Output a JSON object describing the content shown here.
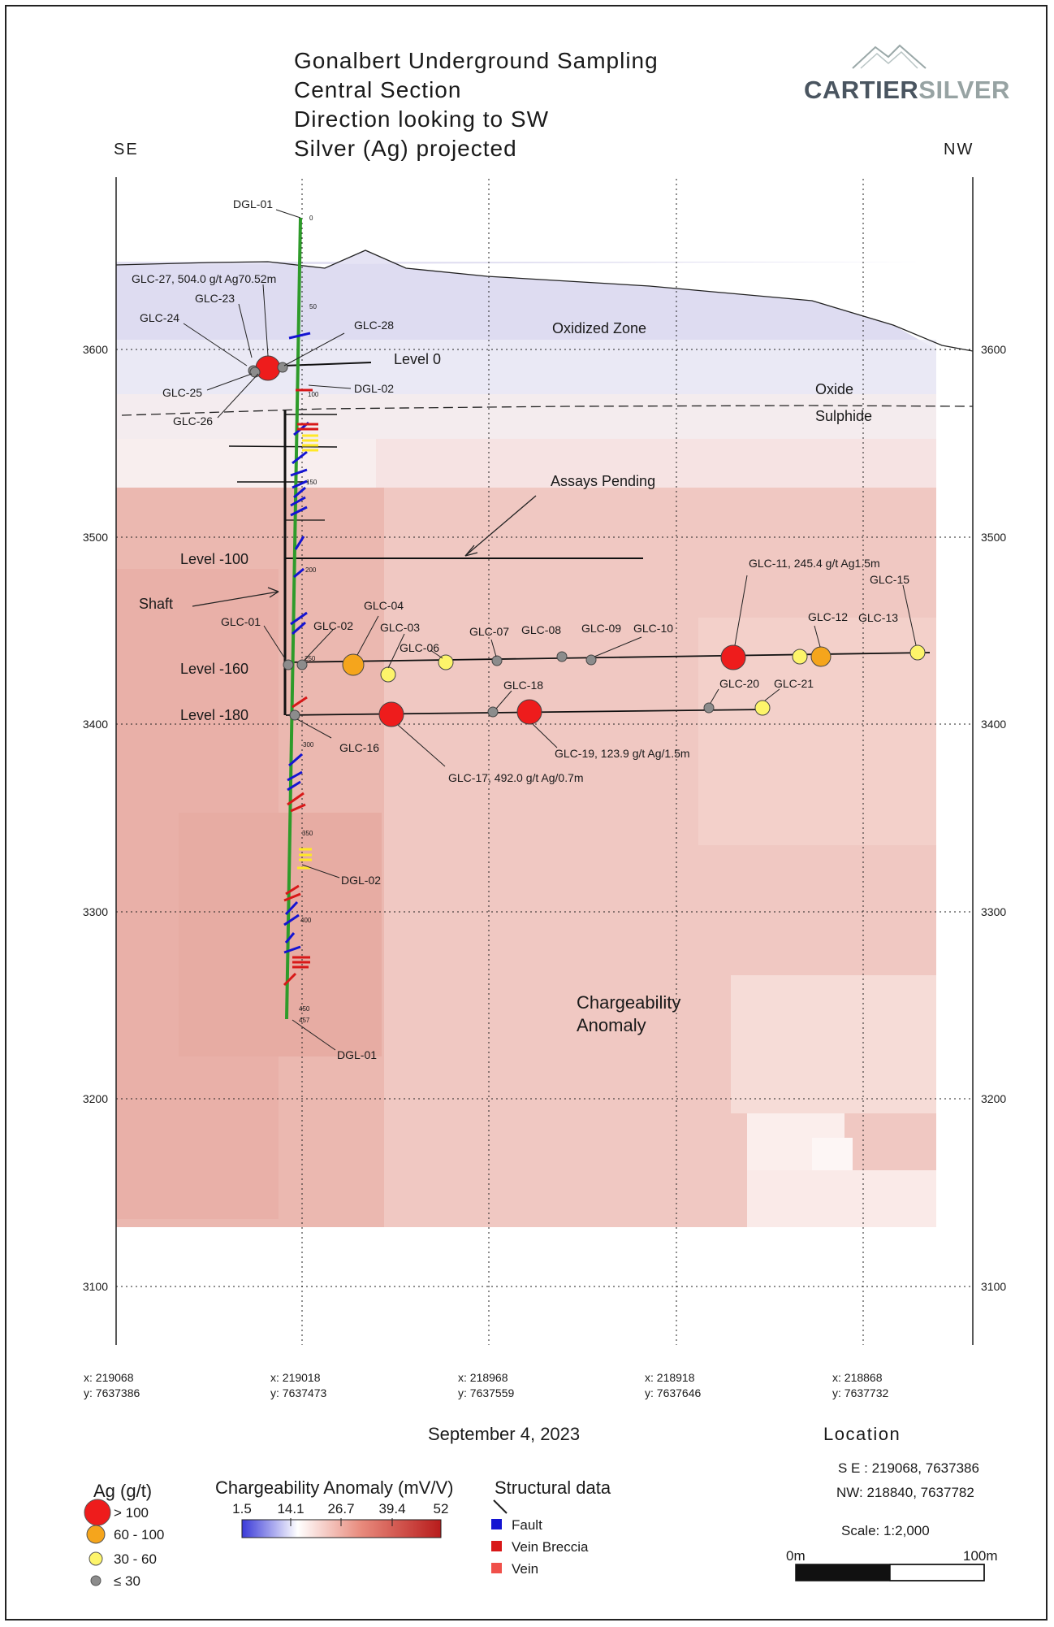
{
  "title_lines": [
    "Gonalbert Underground Sampling",
    "Central Section",
    "Direction looking to SW",
    "Silver (Ag) projected"
  ],
  "logo": {
    "text_dark": "CARTIER",
    "text_light": "SILVER"
  },
  "direction": {
    "left": "SE",
    "right": "NW"
  },
  "elevation_ticks": [
    "3600",
    "3500",
    "3400",
    "3300",
    "3200",
    "3100"
  ],
  "x_ticks": [
    {
      "x": "x: 219068",
      "y": "y: 7637386"
    },
    {
      "x": "x: 219018",
      "y": "y: 7637473"
    },
    {
      "x": "x: 218968",
      "y": "y: 7637559"
    },
    {
      "x": "x: 218918",
      "y": "y: 7637646"
    },
    {
      "x": "x: 218868",
      "y": "y: 7637732"
    }
  ],
  "depth_ticks": [
    "0",
    "50",
    "100",
    "150",
    "200",
    "250",
    "300",
    "350",
    "400",
    "450",
    "457"
  ],
  "zones": {
    "oxidized": "Oxidized Zone",
    "oxide": "Oxide",
    "sulphide": "Sulphide",
    "assays": "Assays Pending",
    "chargeability": [
      "Chargeability",
      "Anomaly"
    ]
  },
  "levels": {
    "level0": "Level 0",
    "level100": "Level -100",
    "level160": "Level -160",
    "level180": "Level -180",
    "shaft": "Shaft"
  },
  "holes": {
    "dgl01_top": "DGL-01",
    "dgl02_top": "DGL-02",
    "dgl02_bottom": "DGL-02",
    "dgl01_bottom": "DGL-01"
  },
  "samples": [
    {
      "id": "GLC-27",
      "label": "GLC-27, 504.0 g/t Ag70.52m",
      "grade": ">100"
    },
    {
      "id": "GLC-23",
      "label": "GLC-23",
      "grade": "<=30"
    },
    {
      "id": "GLC-24",
      "label": "GLC-24",
      "grade": "<=30"
    },
    {
      "id": "GLC-25",
      "label": "GLC-25",
      "grade": "<=30"
    },
    {
      "id": "GLC-26",
      "label": "GLC-26",
      "grade": "<=30"
    },
    {
      "id": "GLC-28",
      "label": "GLC-28",
      "grade": "<=30"
    },
    {
      "id": "GLC-01",
      "label": "GLC-01",
      "grade": "<=30"
    },
    {
      "id": "GLC-02",
      "label": "GLC-02",
      "grade": "<=30"
    },
    {
      "id": "GLC-03",
      "label": "GLC-03",
      "grade": "30-60"
    },
    {
      "id": "GLC-04",
      "label": "GLC-04",
      "grade": "60-100"
    },
    {
      "id": "GLC-06",
      "label": "GLC-06",
      "grade": "30-60"
    },
    {
      "id": "GLC-07",
      "label": "GLC-07",
      "grade": "<=30"
    },
    {
      "id": "GLC-08",
      "label": "GLC-08",
      "grade": "<=30"
    },
    {
      "id": "GLC-09",
      "label": "GLC-09",
      "grade": "<=30"
    },
    {
      "id": "GLC-10",
      "label": "GLC-10",
      "grade": "<=30"
    },
    {
      "id": "GLC-11",
      "label": "GLC-11, 245.4 g/t Ag1.5m",
      "grade": ">100"
    },
    {
      "id": "GLC-12",
      "label": "GLC-12",
      "grade": "30-60"
    },
    {
      "id": "GLC-13",
      "label": "GLC-13",
      "grade": "60-100"
    },
    {
      "id": "GLC-15",
      "label": "GLC-15",
      "grade": "30-60"
    },
    {
      "id": "GLC-16",
      "label": "GLC-16",
      "grade": "<=30"
    },
    {
      "id": "GLC-17",
      "label": "GLC-17, 492.0 g/t Ag/0.7m",
      "grade": ">100"
    },
    {
      "id": "GLC-18",
      "label": "GLC-18",
      "grade": "<=30"
    },
    {
      "id": "GLC-19",
      "label": "GLC-19, 123.9 g/t Ag/1.5m",
      "grade": ">100"
    },
    {
      "id": "GLC-20",
      "label": "GLC-20",
      "grade": "<=30"
    },
    {
      "id": "GLC-21",
      "label": "GLC-21",
      "grade": "30-60"
    }
  ],
  "date": "September 4, 2023",
  "location": {
    "heading": "Location",
    "se": "S E :   219068, 7637386",
    "nw": "NW:   218840, 7637782"
  },
  "scale": {
    "label": "Scale: 1:2,000",
    "start": "0m",
    "end": "100m"
  },
  "legend_ag": {
    "title": "Ag (g/t)",
    "items": [
      {
        "label": "> 100",
        "color": "#ee1c1c"
      },
      {
        "label": "60 - 100",
        "color": "#f5a51c"
      },
      {
        "label": "30 - 60",
        "color": "#fdf46a"
      },
      {
        "label": "≤ 30",
        "color": "#8c8c8c"
      }
    ]
  },
  "legend_charge": {
    "title": "Chargeability Anomaly (mV/V)",
    "ticks": [
      "1.5",
      "14.1",
      "26.7",
      "39.4",
      "52"
    ]
  },
  "legend_struct": {
    "title": "Structural data",
    "items": [
      {
        "label": "Fault",
        "color": "#1414d2"
      },
      {
        "label": "Vein Breccia",
        "color": "#d81818"
      },
      {
        "label": "Vein",
        "color": "#f0504a"
      }
    ]
  },
  "colors": {
    "drill": "#2e9b2a",
    "fault": "#1414d2",
    "vein": "#d81818",
    "high": "#ee1c1c",
    "mid": "#f5a51c",
    "low": "#fdf46a",
    "trace": "#8c8c8c"
  }
}
